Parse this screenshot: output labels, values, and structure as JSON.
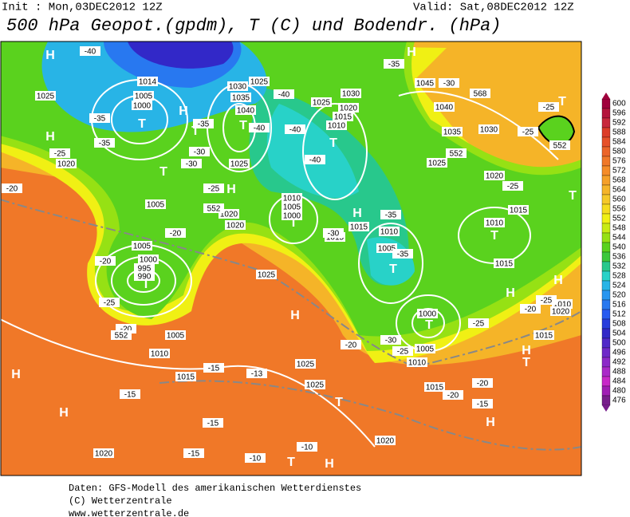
{
  "header": {
    "init": "Init : Mon,03DEC2012 12Z",
    "valid": "Valid: Sat,08DEC2012 12Z",
    "title": "500 hPa Geopot.(gpdm), T (C) und Bodendr. (hPa)"
  },
  "map": {
    "labels": [
      "H",
      "H",
      "H",
      "H",
      "H",
      "H",
      "H",
      "H",
      "H",
      "H",
      "H",
      "H",
      "H",
      "H",
      "T",
      "T",
      "T",
      "T",
      "T",
      "T",
      "T",
      "T",
      "T",
      "T",
      "T",
      "T",
      "T",
      "T",
      "T",
      "1014",
      "1005",
      "1000",
      "1025",
      "1020",
      "1030",
      "1035",
      "1040",
      "1025",
      "1025",
      "1020",
      "1020",
      "1005",
      "1005",
      "1000",
      "995",
      "990",
      "1025",
      "1005",
      "1010",
      "1015",
      "1025",
      "1025",
      "1020",
      "1020",
      "1015",
      "1005",
      "1010",
      "1000",
      "1010",
      "1005",
      "1015",
      "1015",
      "1010",
      "1005",
      "1000",
      "1030",
      "1020",
      "1015",
      "1010",
      "1025",
      "1045",
      "1040",
      "1035",
      "1030",
      "1025",
      "1020",
      "1015",
      "1010",
      "1015",
      "1010",
      "1015",
      "1020",
      "-40",
      "-35",
      "-35",
      "-25",
      "-20",
      "-20",
      "-25",
      "-20",
      "-15",
      "-15",
      "-15",
      "-15",
      "-10",
      "-10",
      "-13",
      "-20",
      "-25",
      "-30",
      "-35",
      "-35",
      "-30",
      "-40",
      "-40",
      "-40",
      "-40",
      "-30",
      "-35",
      "-30",
      "-25",
      "-20",
      "-35",
      "-30",
      "-25",
      "-25",
      "-25",
      "-20",
      "-25",
      "-20",
      "-20",
      "-15",
      "-25",
      "552",
      "552",
      "568",
      "552",
      "552"
    ]
  },
  "colorbar": {
    "levels": [
      600,
      596,
      592,
      588,
      584,
      580,
      576,
      572,
      568,
      564,
      560,
      556,
      552,
      548,
      544,
      540,
      536,
      532,
      528,
      524,
      520,
      516,
      512,
      508,
      504,
      500,
      496,
      492,
      488,
      484,
      480,
      476
    ],
    "colors": [
      "#a0003c",
      "#b4143c",
      "#c8283c",
      "#dc3c28",
      "#e65028",
      "#eb6428",
      "#f07828",
      "#f58c28",
      "#f5a028",
      "#f5b428",
      "#f5c828",
      "#f5dc1e",
      "#f0f014",
      "#c8eb14",
      "#96e114",
      "#5ad21e",
      "#3cc83c",
      "#28c88c",
      "#28d2c8",
      "#28b4e6",
      "#2896f0",
      "#2878f0",
      "#285af0",
      "#283cdc",
      "#3228c8",
      "#5028c8",
      "#6e28c8",
      "#8c28c8",
      "#aa28c8",
      "#c828c8",
      "#a01eb4",
      "#781e8c"
    ]
  },
  "footer": {
    "source": "Daten: GFS-Modell des amerikanischen Wetterdienstes",
    "copyright": "(C) Wetterzentrale",
    "url": "www.wetterzentrale.de"
  }
}
